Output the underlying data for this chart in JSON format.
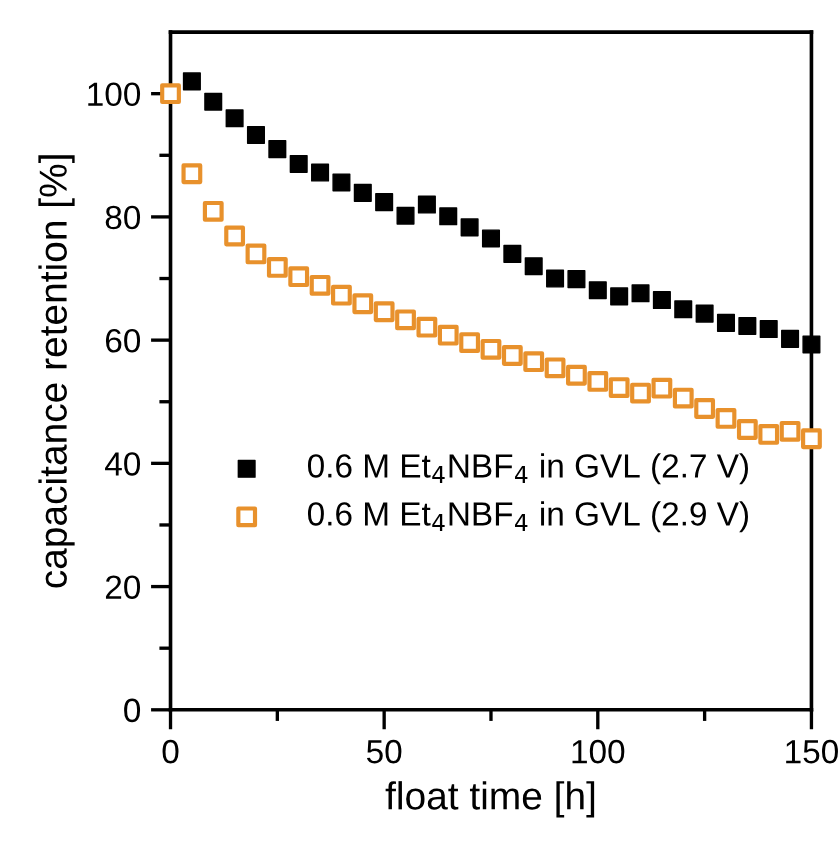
{
  "chart_data": {
    "type": "scatter",
    "xlabel": "float time [h]",
    "ylabel": "capacitance retention [%]",
    "xlim": [
      0,
      150
    ],
    "ylim": [
      0,
      110
    ],
    "xticks": [
      0,
      {
        "value": 25,
        "label": null
      },
      50,
      {
        "value": 75,
        "label": null
      },
      100,
      {
        "value": 125,
        "label": null
      },
      150
    ],
    "yticks": [
      0,
      {
        "value": 10,
        "label": null
      },
      20,
      {
        "value": 30,
        "label": null
      },
      40,
      {
        "value": 50,
        "label": null
      },
      60,
      {
        "value": 70,
        "label": null
      },
      80,
      {
        "value": 90,
        "label": null
      },
      100
    ],
    "marker": "square",
    "grid": false,
    "legend": "left",
    "series": [
      {
        "name": "0.6 M Et$_{4}$NBF$_{4}$ in GVL (2.7 V)",
        "color": "#000000",
        "x": [
          5,
          10,
          15,
          20,
          25,
          30,
          35,
          40,
          45,
          50,
          55,
          60,
          65,
          70,
          75,
          80,
          85,
          90,
          95,
          100,
          105,
          110,
          115,
          120,
          125,
          130,
          135,
          140,
          145,
          150
        ],
        "values": [
          102.0,
          98.7,
          96.0,
          93.3,
          91.0,
          88.6,
          87.2,
          85.6,
          83.9,
          82.4,
          80.2,
          82.0,
          80.1,
          78.3,
          76.5,
          74.0,
          72.0,
          70.0,
          69.9,
          68.1,
          67.1,
          67.6,
          66.5,
          65.0,
          64.3,
          62.8,
          62.3,
          61.8,
          60.2,
          59.3
        ]
      },
      {
        "name": "0.6 M Et$_{4}$NBF$_{4}$ in GVL (2.9 V)",
        "color": "#e8912c",
        "x": [
          0,
          5,
          10,
          15,
          20,
          25,
          30,
          35,
          40,
          45,
          50,
          55,
          60,
          65,
          70,
          75,
          80,
          85,
          90,
          95,
          100,
          105,
          110,
          115,
          120,
          125,
          130,
          135,
          140,
          145,
          150
        ],
        "values": [
          100.0,
          87.0,
          80.9,
          76.9,
          74.0,
          71.8,
          70.3,
          68.9,
          67.3,
          65.9,
          64.6,
          63.3,
          62.1,
          60.8,
          59.6,
          58.5,
          57.5,
          56.5,
          55.5,
          54.3,
          53.3,
          52.3,
          51.4,
          52.2,
          50.6,
          48.9,
          47.3,
          45.5,
          44.7,
          45.2,
          44.0
        ]
      }
    ]
  }
}
